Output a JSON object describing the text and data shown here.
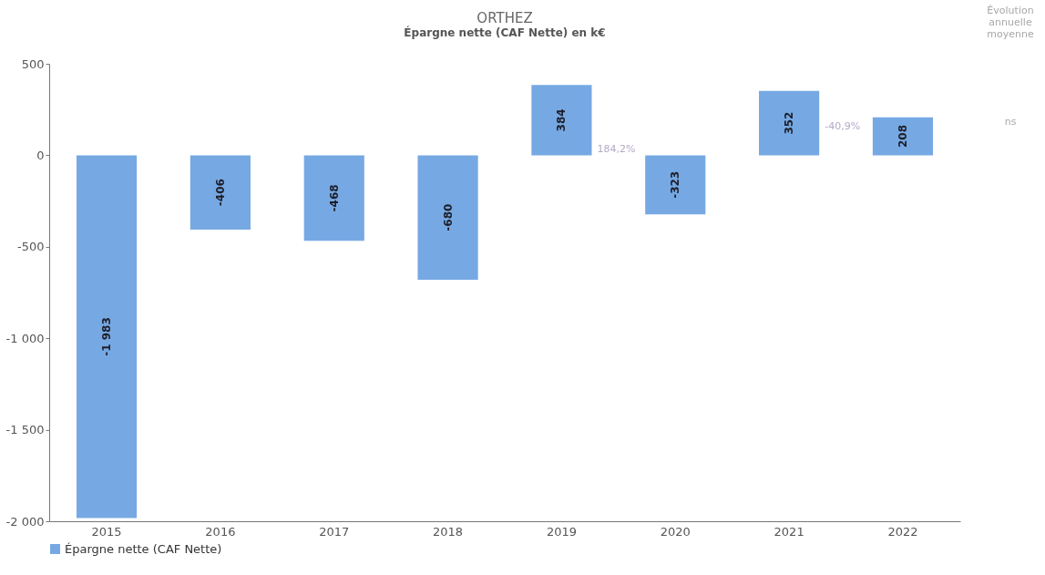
{
  "chart_data": {
    "type": "bar",
    "title": "ORTHEZ",
    "subtitle": "Épargne nette (CAF Nette) en k€",
    "categories": [
      "2015",
      "2016",
      "2017",
      "2018",
      "2019",
      "2020",
      "2021",
      "2022"
    ],
    "series": [
      {
        "name": "Épargne nette (CAF Nette)",
        "color": "#76a9e3",
        "values": [
          -1983,
          -406,
          -468,
          -680,
          384,
          -323,
          352,
          208
        ],
        "value_labels": [
          "-1 983",
          "-406",
          "-468",
          "-680",
          "384",
          "-323",
          "352",
          "208"
        ]
      }
    ],
    "ylim": [
      -2000,
      500
    ],
    "yticks": [
      {
        "value": -2000,
        "label": "-2 000"
      },
      {
        "value": -1500,
        "label": "-1 500"
      },
      {
        "value": -1000,
        "label": "-1 000"
      },
      -500,
      0,
      500
    ],
    "annotations": [
      "184,2%",
      "-40,9%",
      "Évolution annuelle moyenne",
      "ns"
    ],
    "grid": false,
    "legend": "bottom left"
  }
}
